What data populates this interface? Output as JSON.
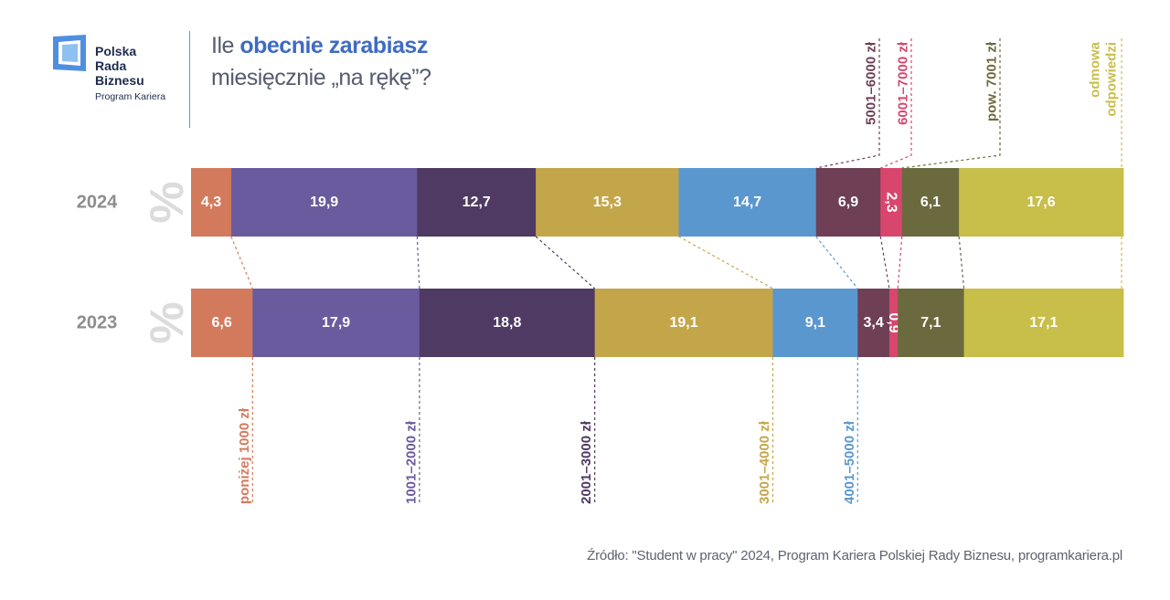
{
  "logo": {
    "line1": "Polska",
    "line2": "Rada",
    "line3": "Biznesu",
    "sub": "Program Kariera"
  },
  "title": {
    "prefix": "Ile ",
    "highlight": "obecnie zarabiasz",
    "line2": "miesięcznie „na rękę”?"
  },
  "source": "Źródło: \"Student w pracy\" 2024, Program Kariera Polskiej Rady Biznesu, programkariera.pl",
  "colors": {
    "highlight": "#3f6bc2",
    "percent_glyph": "#dcdcdc",
    "year_label": "#8e8e8e"
  },
  "chart_data": {
    "type": "bar",
    "orientation": "horizontal-stacked-100",
    "unit_symbol": "%",
    "categories": [
      "poniżej 1000 zł",
      "1001–2000 zł",
      "2001–3000 zł",
      "3001–4000 zł",
      "4001–5000 zł",
      "5001–6000 zł",
      "6001–7000 zł",
      "pow. 7001 zł",
      "odmowa odpowiedzi"
    ],
    "category_colors": [
      "#d47a5c",
      "#6a5b9e",
      "#4e3a62",
      "#c4a64a",
      "#5b97cf",
      "#6e3f55",
      "#d8466d",
      "#6b6a3e",
      "#c8be4a"
    ],
    "label_positions": [
      "bottom",
      "bottom",
      "bottom",
      "bottom",
      "bottom",
      "top",
      "top",
      "top",
      "top"
    ],
    "series": [
      {
        "name": "2024",
        "values": [
          4.3,
          19.9,
          12.7,
          15.3,
          14.7,
          6.9,
          2.3,
          6.1,
          17.6
        ],
        "labels": [
          "4,3",
          "19,9",
          "12,7",
          "15,3",
          "14,7",
          "6,9",
          "2,3",
          "6,1",
          "17,6"
        ]
      },
      {
        "name": "2023",
        "values": [
          6.6,
          17.9,
          18.8,
          19.1,
          9.1,
          3.4,
          0.9,
          7.1,
          17.1
        ],
        "labels": [
          "6,6",
          "17,9",
          "18,8",
          "19,1",
          "9,1",
          "3,4",
          "0,9",
          "7,1",
          "17,1"
        ]
      }
    ]
  }
}
